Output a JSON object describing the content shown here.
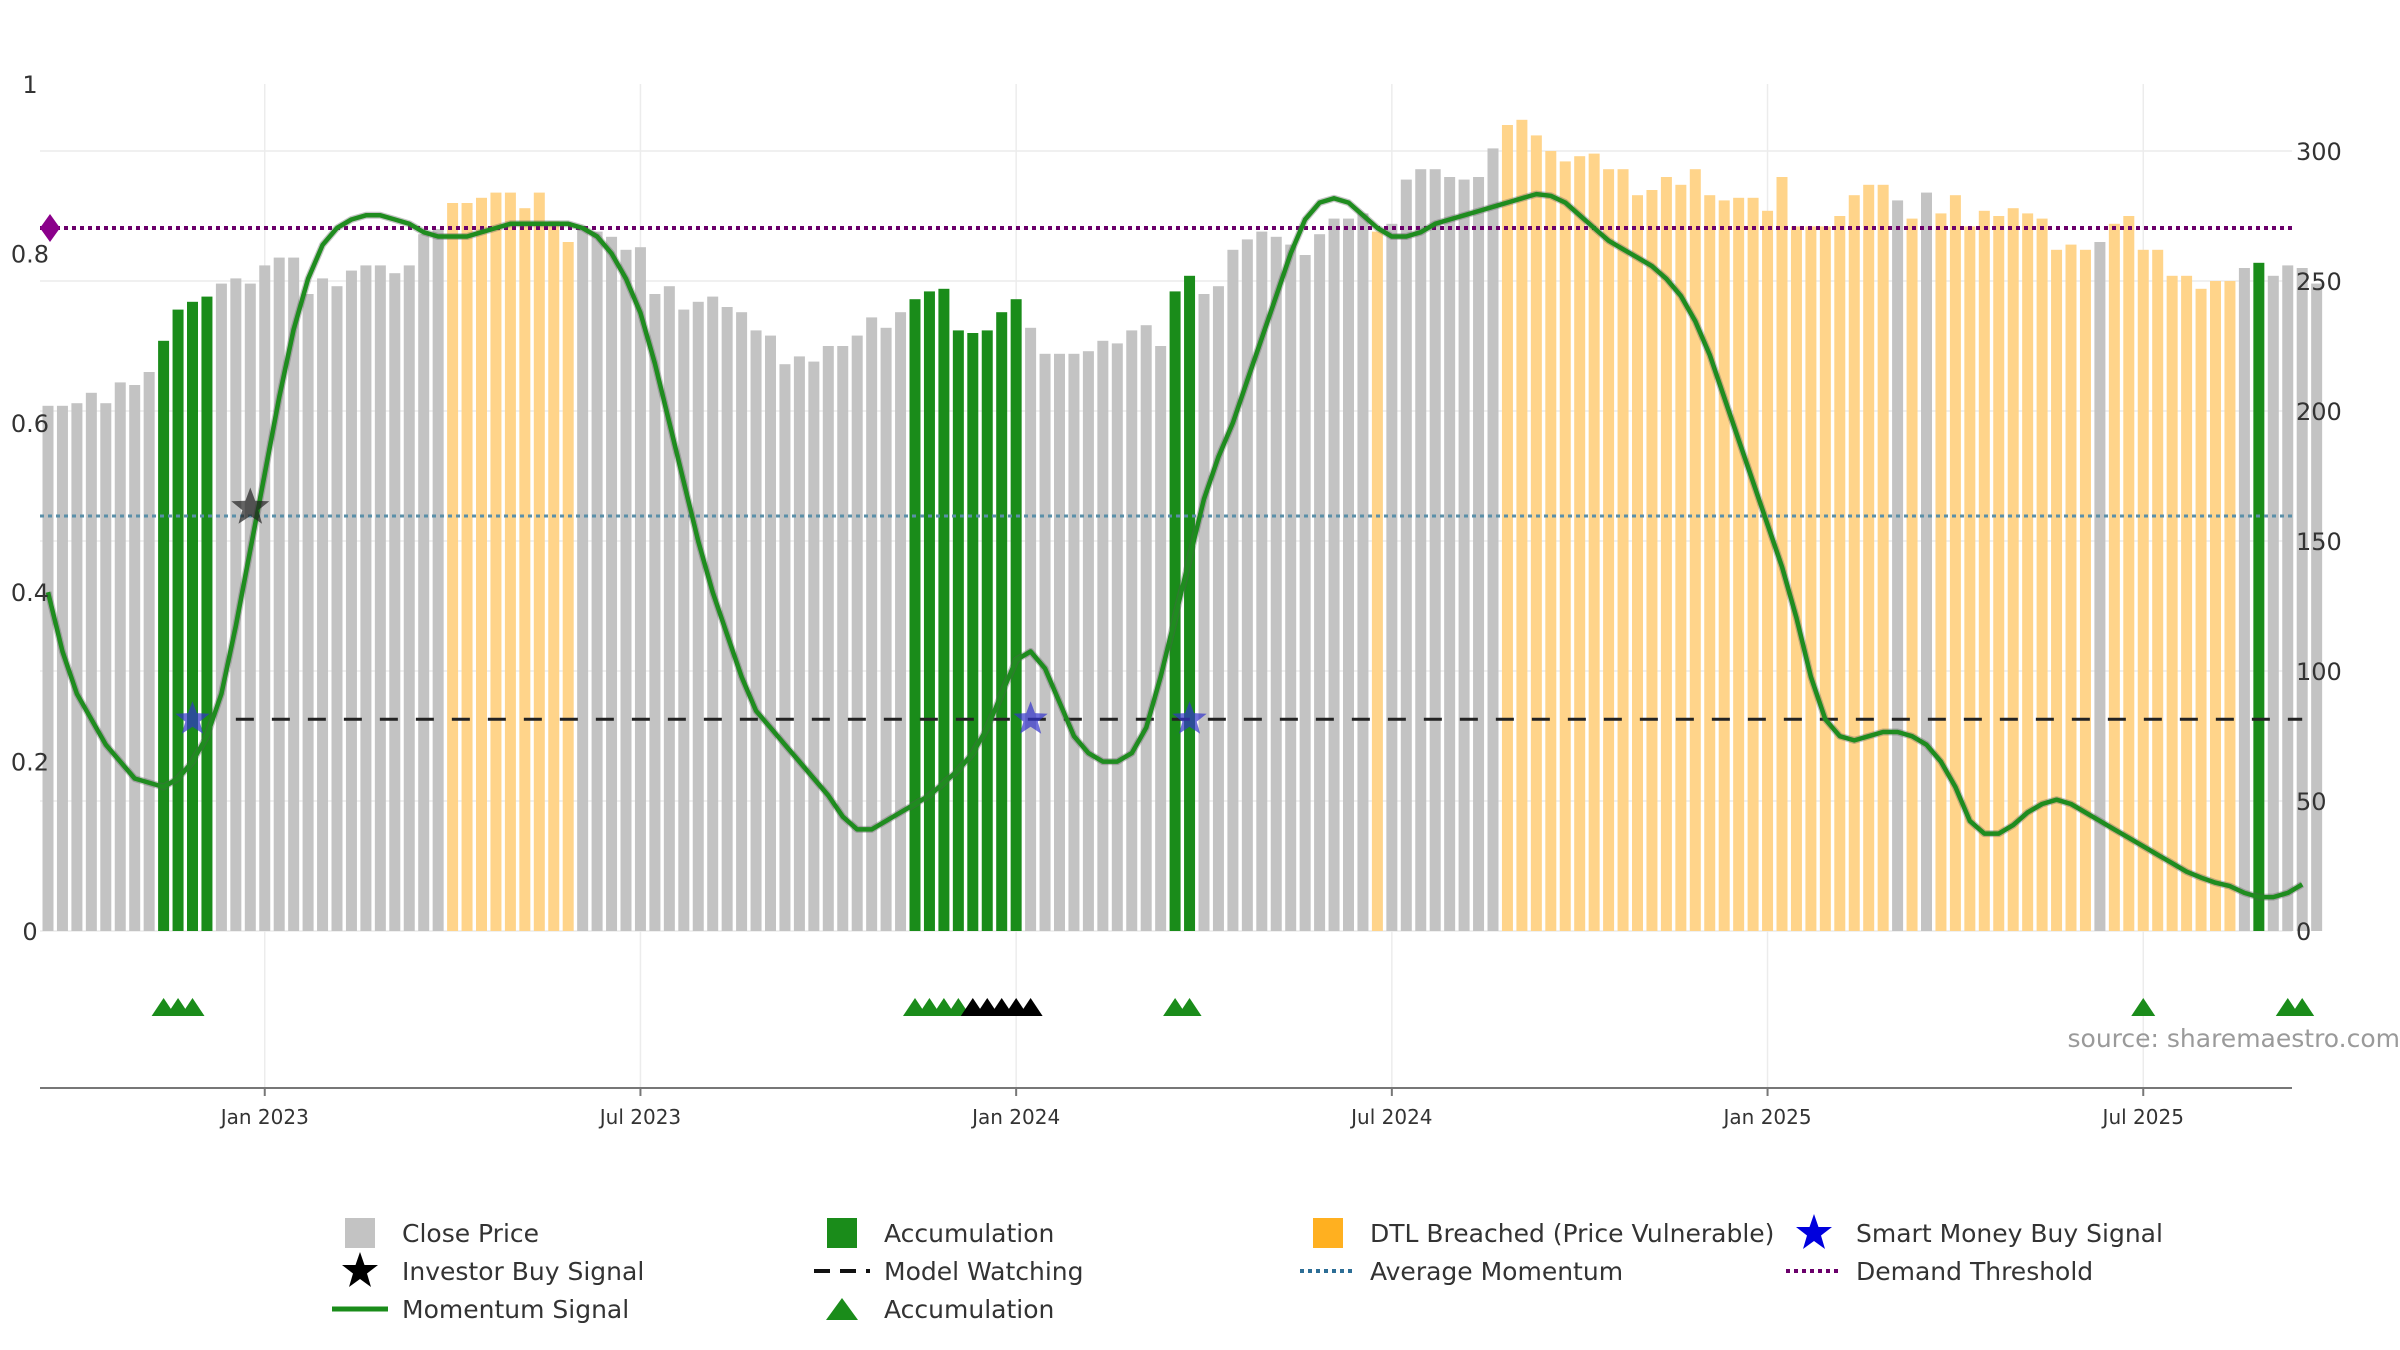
{
  "chart_data": {
    "type": "bar",
    "source": "source: sharemaestro.com",
    "left_axis": {
      "ylim": [
        0,
        1
      ],
      "ticks": [
        "0",
        "0.2",
        "0.4",
        "0.6",
        "0.8",
        "1"
      ]
    },
    "right_axis": {
      "ylim": [
        0,
        300
      ],
      "ticks": [
        "0",
        "50",
        "100",
        "150",
        "200",
        "250",
        "300"
      ]
    },
    "x_ticks": [
      {
        "label": "Jan 2023",
        "index": 15
      },
      {
        "label": "Jul 2023",
        "index": 41
      },
      {
        "label": "Jan 2024",
        "index": 67
      },
      {
        "label": "Jul 2024",
        "index": 93
      },
      {
        "label": "Jan 2025",
        "index": 119
      },
      {
        "label": "Jul 2025",
        "index": 145
      }
    ],
    "close_price": [
      202,
      202,
      203,
      207,
      203,
      211,
      210,
      215,
      227,
      239,
      242,
      244,
      249,
      251,
      249,
      256,
      259,
      259,
      245,
      251,
      248,
      254,
      256,
      256,
      253,
      256,
      268,
      270,
      280,
      280,
      282,
      284,
      284,
      278,
      284,
      273,
      265,
      270,
      269,
      267,
      262,
      263,
      245,
      248,
      239,
      242,
      244,
      240,
      238,
      231,
      229,
      218,
      221,
      219,
      225,
      225,
      229,
      236,
      232,
      238,
      243,
      246,
      247,
      231,
      230,
      231,
      238,
      243,
      232,
      222,
      222,
      222,
      223,
      227,
      226,
      231,
      233,
      225,
      246,
      252,
      245,
      248,
      262,
      266,
      269,
      267,
      264,
      260,
      268,
      274,
      274,
      276,
      269,
      272,
      289,
      293,
      293,
      290,
      289,
      290,
      301,
      310,
      312,
      306,
      300,
      296,
      298,
      299,
      293,
      293,
      283,
      285,
      290,
      287,
      293,
      283,
      281,
      282,
      282,
      277,
      290,
      271,
      271,
      271,
      275,
      283,
      287,
      287,
      281,
      274,
      284,
      276,
      283,
      271,
      277,
      275,
      278,
      276,
      274,
      262,
      264,
      262,
      265,
      272,
      275,
      262,
      262,
      252,
      252,
      247,
      250,
      250,
      255,
      257,
      252,
      256,
      255,
      249
    ],
    "color_state": [
      "g",
      "g",
      "g",
      "g",
      "g",
      "g",
      "g",
      "g",
      "a",
      "a",
      "a",
      "a",
      "g",
      "g",
      "g",
      "g",
      "g",
      "g",
      "g",
      "g",
      "g",
      "g",
      "g",
      "g",
      "g",
      "g",
      "g",
      "g",
      "d",
      "d",
      "d",
      "d",
      "d",
      "d",
      "d",
      "d",
      "d",
      "g",
      "g",
      "g",
      "g",
      "g",
      "g",
      "g",
      "g",
      "g",
      "g",
      "g",
      "g",
      "g",
      "g",
      "g",
      "g",
      "g",
      "g",
      "g",
      "g",
      "g",
      "g",
      "g",
      "a",
      "a",
      "a",
      "a",
      "a",
      "a",
      "a",
      "a",
      "g",
      "g",
      "g",
      "g",
      "g",
      "g",
      "g",
      "g",
      "g",
      "g",
      "a",
      "a",
      "g",
      "g",
      "g",
      "g",
      "g",
      "g",
      "g",
      "g",
      "g",
      "g",
      "g",
      "g",
      "d",
      "g",
      "g",
      "g",
      "g",
      "g",
      "g",
      "g",
      "g",
      "d",
      "d",
      "d",
      "d",
      "d",
      "d",
      "d",
      "d",
      "d",
      "d",
      "d",
      "d",
      "d",
      "d",
      "d",
      "d",
      "d",
      "d",
      "d",
      "d",
      "d",
      "d",
      "d",
      "d",
      "d",
      "d",
      "d",
      "g",
      "d",
      "g",
      "d",
      "d",
      "d",
      "d",
      "d",
      "d",
      "d",
      "d",
      "d",
      "d",
      "d",
      "g",
      "d",
      "d",
      "d",
      "d",
      "d",
      "d",
      "d",
      "d",
      "d",
      "g",
      "a",
      "g",
      "g",
      "g",
      "g",
      "g",
      "g",
      "g",
      "g",
      "a",
      "a"
    ],
    "momentum": [
      [
        0,
        0.4
      ],
      [
        1,
        0.33
      ],
      [
        2,
        0.28
      ],
      [
        4,
        0.22
      ],
      [
        6,
        0.18
      ],
      [
        8,
        0.17
      ],
      [
        9,
        0.18
      ],
      [
        10,
        0.2
      ],
      [
        11,
        0.23
      ],
      [
        12,
        0.28
      ],
      [
        13,
        0.36
      ],
      [
        14,
        0.45
      ],
      [
        15,
        0.54
      ],
      [
        16,
        0.63
      ],
      [
        17,
        0.71
      ],
      [
        18,
        0.77
      ],
      [
        19,
        0.81
      ],
      [
        20,
        0.83
      ],
      [
        21,
        0.84
      ],
      [
        22,
        0.845
      ],
      [
        23,
        0.845
      ],
      [
        24,
        0.84
      ],
      [
        25,
        0.835
      ],
      [
        26,
        0.825
      ],
      [
        27,
        0.82
      ],
      [
        28,
        0.82
      ],
      [
        29,
        0.82
      ],
      [
        30,
        0.825
      ],
      [
        31,
        0.83
      ],
      [
        32,
        0.835
      ],
      [
        33,
        0.835
      ],
      [
        34,
        0.835
      ],
      [
        35,
        0.835
      ],
      [
        36,
        0.835
      ],
      [
        37,
        0.83
      ],
      [
        38,
        0.82
      ],
      [
        39,
        0.8
      ],
      [
        40,
        0.77
      ],
      [
        41,
        0.73
      ],
      [
        42,
        0.67
      ],
      [
        43,
        0.6
      ],
      [
        44,
        0.53
      ],
      [
        45,
        0.46
      ],
      [
        46,
        0.4
      ],
      [
        47,
        0.35
      ],
      [
        48,
        0.3
      ],
      [
        49,
        0.26
      ],
      [
        50,
        0.24
      ],
      [
        51,
        0.22
      ],
      [
        52,
        0.2
      ],
      [
        53,
        0.18
      ],
      [
        54,
        0.16
      ],
      [
        55,
        0.135
      ],
      [
        56,
        0.12
      ],
      [
        57,
        0.12
      ],
      [
        58,
        0.13
      ],
      [
        59,
        0.14
      ],
      [
        60,
        0.15
      ],
      [
        61,
        0.16
      ],
      [
        62,
        0.175
      ],
      [
        63,
        0.19
      ],
      [
        64,
        0.21
      ],
      [
        65,
        0.24
      ],
      [
        66,
        0.28
      ],
      [
        67,
        0.32
      ],
      [
        68,
        0.33
      ],
      [
        69,
        0.31
      ],
      [
        70,
        0.27
      ],
      [
        71,
        0.23
      ],
      [
        72,
        0.21
      ],
      [
        73,
        0.2
      ],
      [
        74,
        0.2
      ],
      [
        75,
        0.21
      ],
      [
        76,
        0.24
      ],
      [
        77,
        0.3
      ],
      [
        78,
        0.37
      ],
      [
        79,
        0.44
      ],
      [
        80,
        0.51
      ],
      [
        81,
        0.56
      ],
      [
        82,
        0.6
      ],
      [
        83,
        0.65
      ],
      [
        84,
        0.7
      ],
      [
        85,
        0.75
      ],
      [
        86,
        0.8
      ],
      [
        87,
        0.84
      ],
      [
        88,
        0.86
      ],
      [
        89,
        0.865
      ],
      [
        90,
        0.86
      ],
      [
        91,
        0.845
      ],
      [
        92,
        0.83
      ],
      [
        93,
        0.82
      ],
      [
        94,
        0.82
      ],
      [
        95,
        0.825
      ],
      [
        96,
        0.835
      ],
      [
        97,
        0.84
      ],
      [
        98,
        0.845
      ],
      [
        99,
        0.85
      ],
      [
        100,
        0.855
      ],
      [
        101,
        0.86
      ],
      [
        102,
        0.865
      ],
      [
        103,
        0.87
      ],
      [
        104,
        0.868
      ],
      [
        105,
        0.86
      ],
      [
        106,
        0.845
      ],
      [
        107,
        0.83
      ],
      [
        108,
        0.815
      ],
      [
        109,
        0.805
      ],
      [
        110,
        0.795
      ],
      [
        111,
        0.785
      ],
      [
        112,
        0.77
      ],
      [
        113,
        0.75
      ],
      [
        114,
        0.72
      ],
      [
        115,
        0.68
      ],
      [
        116,
        0.63
      ],
      [
        117,
        0.58
      ],
      [
        118,
        0.53
      ],
      [
        119,
        0.48
      ],
      [
        120,
        0.43
      ],
      [
        121,
        0.37
      ],
      [
        122,
        0.3
      ],
      [
        123,
        0.25
      ],
      [
        124,
        0.23
      ],
      [
        125,
        0.225
      ],
      [
        126,
        0.23
      ],
      [
        127,
        0.235
      ],
      [
        128,
        0.235
      ],
      [
        129,
        0.23
      ],
      [
        130,
        0.22
      ],
      [
        131,
        0.2
      ],
      [
        132,
        0.17
      ],
      [
        133,
        0.13
      ],
      [
        134,
        0.115
      ],
      [
        135,
        0.115
      ],
      [
        136,
        0.125
      ],
      [
        137,
        0.14
      ],
      [
        138,
        0.15
      ],
      [
        139,
        0.155
      ],
      [
        140,
        0.15
      ],
      [
        141,
        0.14
      ],
      [
        142,
        0.13
      ],
      [
        143,
        0.12
      ],
      [
        144,
        0.11
      ],
      [
        145,
        0.1
      ],
      [
        146,
        0.09
      ],
      [
        147,
        0.08
      ],
      [
        148,
        0.07
      ],
      [
        149,
        0.063
      ],
      [
        150,
        0.057
      ],
      [
        151,
        0.053
      ],
      [
        152,
        0.045
      ],
      [
        153,
        0.04
      ],
      [
        154,
        0.04
      ],
      [
        155,
        0.045
      ],
      [
        156,
        0.055
      ]
    ],
    "model_watching": {
      "level": 0.25,
      "from_index": 13,
      "to_index": 156
    },
    "average_momentum": 0.49,
    "demand_threshold": 0.83,
    "smart_money_buy_signals": [
      [
        10,
        0.25
      ],
      [
        68,
        0.25
      ],
      [
        79,
        0.25
      ]
    ],
    "investor_buy_signals": [
      [
        14,
        0.5
      ]
    ],
    "accumulation_markers": [
      [
        8,
        "green"
      ],
      [
        9,
        "green"
      ],
      [
        10,
        "green"
      ],
      [
        60,
        "green"
      ],
      [
        61,
        "green"
      ],
      [
        62,
        "green"
      ],
      [
        63,
        "green"
      ],
      [
        64,
        "black"
      ],
      [
        65,
        "black"
      ],
      [
        66,
        "black"
      ],
      [
        67,
        "black"
      ],
      [
        68,
        "black"
      ],
      [
        78,
        "green"
      ],
      [
        79,
        "green"
      ],
      [
        145,
        "green"
      ],
      [
        155,
        "green"
      ],
      [
        156,
        "green"
      ]
    ],
    "legend": [
      {
        "label": "Close Price",
        "symbol": "gray-square"
      },
      {
        "label": "Accumulation",
        "symbol": "green-square"
      },
      {
        "label": "DTL Breached (Price Vulnerable)",
        "symbol": "orange-square"
      },
      {
        "label": "Smart Money Buy Signal",
        "symbol": "blue-star"
      },
      {
        "label": "Investor Buy Signal",
        "symbol": "black-star"
      },
      {
        "label": "Model Watching",
        "symbol": "black-dash"
      },
      {
        "label": "Average Momentum",
        "symbol": "blue-dotted"
      },
      {
        "label": "Demand Threshold",
        "symbol": "purple-dotted"
      },
      {
        "label": "Momentum Signal",
        "symbol": "green-line"
      },
      {
        "label": "Accumulation",
        "symbol": "green-triangle"
      }
    ],
    "colors": {
      "close_price": "#c3c3c3",
      "accumulation": "#1a8c1a",
      "dtl_breached": "#ffd48a",
      "momentum": "#1f8c1f",
      "smart_money": "#3333cc",
      "investor": "#222222",
      "average_momentum": "#5a8fa8",
      "demand_threshold": "#6b006b",
      "model_watching": "#222222"
    }
  }
}
